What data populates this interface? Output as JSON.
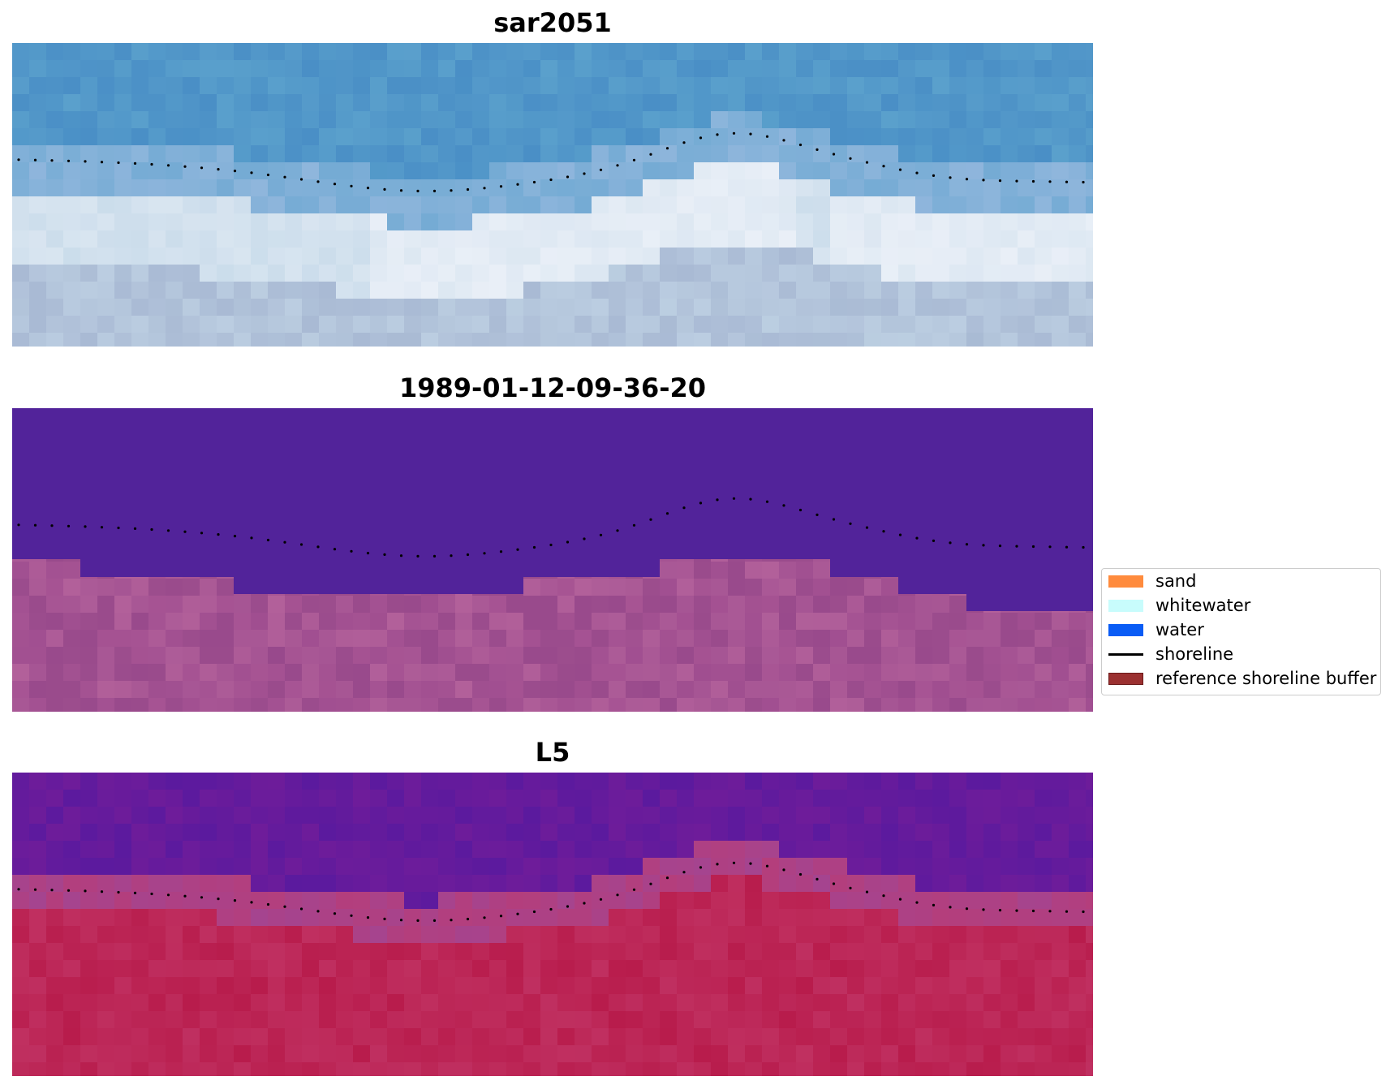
{
  "panels": [
    {
      "title": "sar2051",
      "palette": [
        "#4a8fc6",
        "#5aa0cc",
        "#8fb6dc",
        "#c8dbea",
        "#e9eff7",
        "#a9bad4"
      ]
    },
    {
      "title": "1989-01-12-09-36-20",
      "palette": [
        "#52239a",
        "#9c4d8d",
        "#a85594",
        "#b2609a",
        "#93448a"
      ]
    },
    {
      "title": "L5",
      "palette": [
        "#5b1a9e",
        "#6e1c9a",
        "#a5448f",
        "#c33869",
        "#b81c4c"
      ]
    }
  ],
  "legend": {
    "items": [
      {
        "label": "sand",
        "color": "#ff8b3d",
        "kind": "patch"
      },
      {
        "label": "whitewater",
        "color": "#c8fcfc",
        "kind": "patch"
      },
      {
        "label": "water",
        "color": "#0a5cf5",
        "kind": "patch"
      },
      {
        "label": "shoreline",
        "color": "#000000",
        "kind": "line"
      },
      {
        "label": "reference shoreline buffer",
        "color": "#9b3030",
        "kind": "patch"
      }
    ]
  },
  "colors": {
    "shoreline_dots": "#000000",
    "background": "#ffffff"
  }
}
